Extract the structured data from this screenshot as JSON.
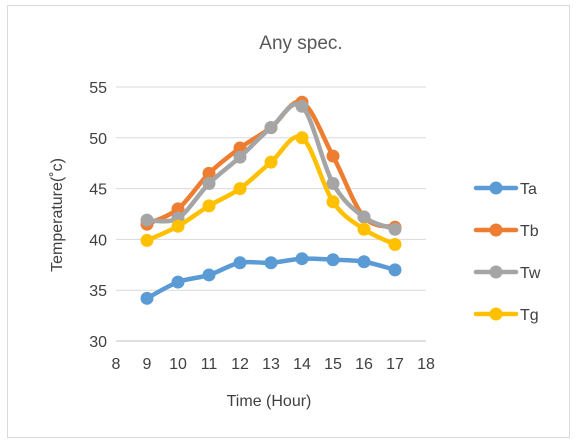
{
  "chart_data": {
    "type": "line",
    "title": "Any spec.",
    "xlabel": "Time (Hour)",
    "ylabel": "Temperature(˚c)",
    "xlim": [
      8,
      18
    ],
    "ylim": [
      30,
      55
    ],
    "x_ticks": [
      "8",
      "9",
      "10",
      "11",
      "12",
      "13",
      "14",
      "15",
      "16",
      "17",
      "18"
    ],
    "y_ticks": [
      "30",
      "35",
      "40",
      "45",
      "50",
      "55"
    ],
    "grid": "horizontal",
    "legend_position": "right",
    "x": [
      9,
      10,
      11,
      12,
      13,
      14,
      15,
      16,
      17
    ],
    "series": [
      {
        "name": "Ta",
        "color": "#5B9BD5",
        "values": [
          34.2,
          35.8,
          36.5,
          37.7,
          37.7,
          38.1,
          38.0,
          37.8,
          37.0
        ]
      },
      {
        "name": "Tb",
        "color": "#ED7D31",
        "values": [
          41.5,
          43.0,
          46.5,
          49.0,
          51.0,
          53.5,
          48.2,
          42.2,
          41.2
        ]
      },
      {
        "name": "Tw",
        "color": "#A5A5A5",
        "values": [
          41.9,
          42.1,
          45.5,
          48.1,
          51.0,
          53.1,
          45.5,
          42.2,
          41.0
        ]
      },
      {
        "name": "Tg",
        "color": "#FFC000",
        "values": [
          39.9,
          41.3,
          43.3,
          45.0,
          47.6,
          50.0,
          43.7,
          41.0,
          39.5
        ]
      }
    ]
  }
}
